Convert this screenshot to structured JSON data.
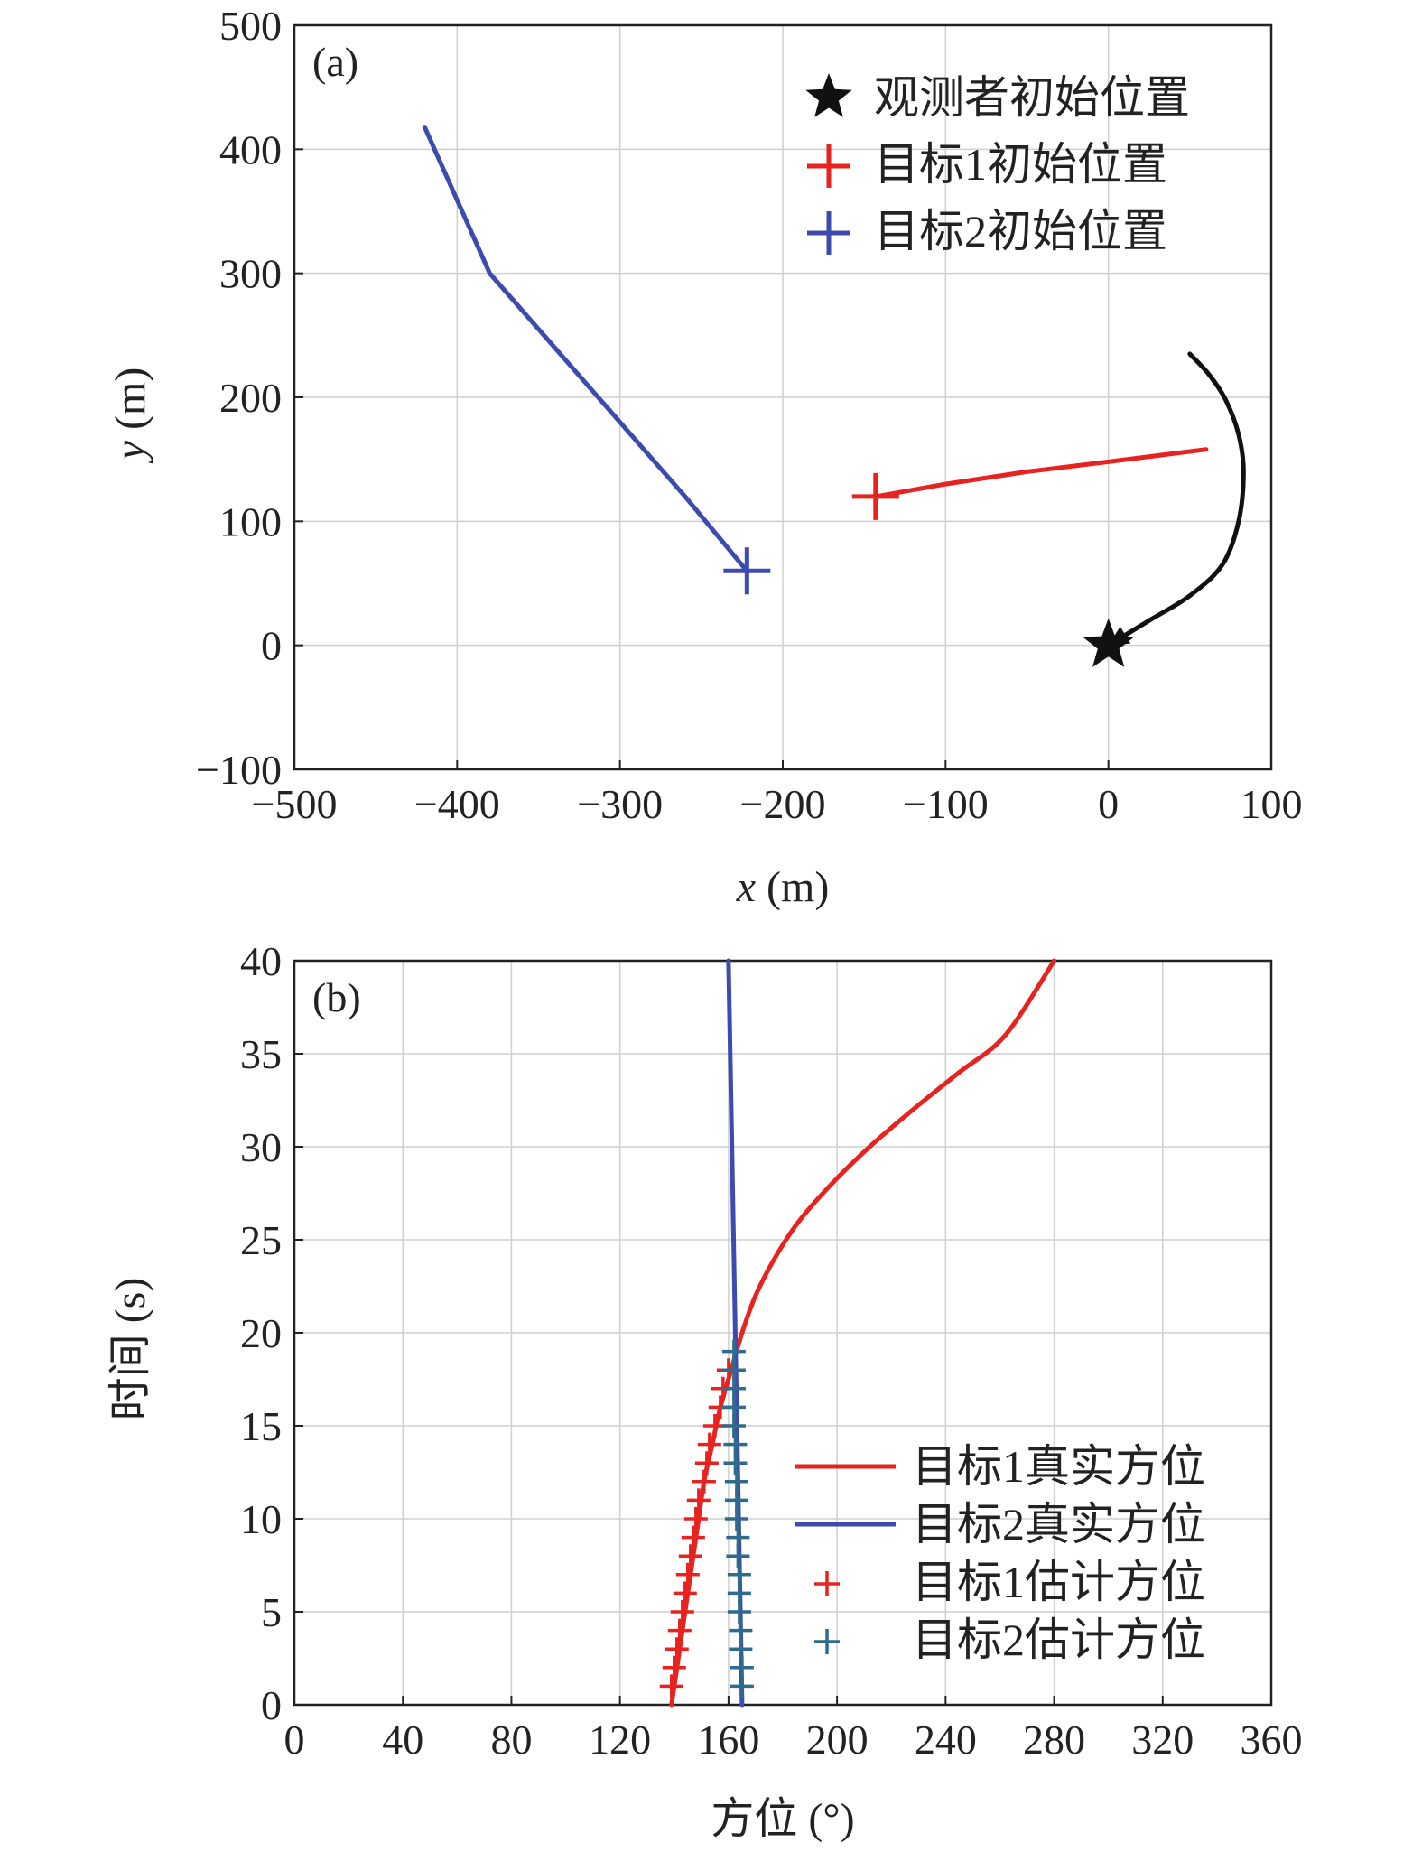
{
  "chart_data": [
    {
      "type": "line",
      "panel_label": "(a)",
      "xlabel": {
        "var": "x",
        "unit": " (m)"
      },
      "ylabel": {
        "var": "y",
        "unit": " (m)"
      },
      "xlim": [
        -500,
        100
      ],
      "ylim": [
        -100,
        500
      ],
      "xticks": [
        -500,
        -400,
        -300,
        -200,
        -100,
        0,
        100
      ],
      "yticks": [
        -100,
        0,
        100,
        200,
        300,
        400,
        500
      ],
      "xtick_labels": [
        "−500",
        "−400",
        "−300",
        "−200",
        "−100",
        "0",
        "100"
      ],
      "ytick_labels": [
        "−100",
        "0",
        "100",
        "200",
        "300",
        "400",
        "500"
      ],
      "grid": true,
      "legend_position": "top-right",
      "series": [
        {
          "name": "观测者初始位置",
          "color": "#111111",
          "marker": "star",
          "points": [
            [
              0,
              0
            ]
          ],
          "path": [
            [
              0,
              0
            ],
            [
              25,
              20
            ],
            [
              50,
              40
            ],
            [
              70,
              65
            ],
            [
              80,
              100
            ],
            [
              83,
              140
            ],
            [
              80,
              170
            ],
            [
              72,
              198
            ],
            [
              62,
              218
            ],
            [
              50,
              235
            ]
          ]
        },
        {
          "name": "目标1初始位置",
          "color": "#e8231f",
          "marker": "plus",
          "points": [
            [
              -143,
              120
            ]
          ],
          "path": [
            [
              -143,
              120
            ],
            [
              -100,
              130
            ],
            [
              -50,
              140
            ],
            [
              0,
              148
            ],
            [
              60,
              158
            ]
          ]
        },
        {
          "name": "目标2初始位置",
          "color": "#3d4bb0",
          "marker": "plus",
          "points": [
            [
              -222,
              60
            ]
          ],
          "path": [
            [
              -222,
              60
            ],
            [
              -260,
              120
            ],
            [
              -300,
              180
            ],
            [
              -340,
              240
            ],
            [
              -380,
              300
            ],
            [
              -420,
              418
            ]
          ]
        }
      ]
    },
    {
      "type": "line",
      "panel_label": "(b)",
      "xlabel": "方位 (°)",
      "ylabel": "时间 (s)",
      "xlim": [
        0,
        360
      ],
      "ylim": [
        0,
        40
      ],
      "xticks": [
        0,
        40,
        80,
        120,
        160,
        200,
        240,
        280,
        320,
        360
      ],
      "yticks": [
        0,
        5,
        10,
        15,
        20,
        25,
        30,
        35,
        40
      ],
      "grid": true,
      "legend_position": "bottom-right",
      "series": [
        {
          "name": "目标1真实方位",
          "color": "#e8231f",
          "style": "line",
          "x": [
            139,
            141,
            143,
            145,
            147,
            149,
            151,
            154,
            157,
            161,
            165,
            170,
            177,
            186,
            198,
            212,
            228,
            245,
            262,
            280
          ],
          "y": [
            0,
            2,
            4,
            6,
            8,
            10,
            12,
            14,
            16,
            18,
            20,
            22,
            24,
            26,
            28,
            30,
            32,
            34,
            36,
            40
          ]
        },
        {
          "name": "目标2真实方位",
          "color": "#3d4bb0",
          "style": "line",
          "x": [
            165,
            164.5,
            164,
            163.5,
            163,
            162.5,
            162,
            161.5,
            161,
            160.5,
            160
          ],
          "y": [
            0,
            4,
            8,
            12,
            16,
            20,
            24,
            28,
            32,
            36,
            40
          ]
        },
        {
          "name": "目标1估计方位",
          "color": "#e8231f",
          "style": "marker",
          "x": [
            139,
            140,
            141,
            142,
            143,
            144,
            145,
            146,
            147,
            148,
            149,
            151,
            152,
            153,
            155,
            157,
            158,
            160
          ],
          "y": [
            1,
            2,
            3,
            4,
            5,
            6,
            7,
            8,
            9,
            10,
            11,
            12,
            13,
            14,
            15,
            16,
            17,
            18
          ]
        },
        {
          "name": "目标2估计方位",
          "color": "#2e6b8c",
          "style": "marker",
          "x": [
            165,
            165,
            164.5,
            164.5,
            164,
            164,
            164,
            163.5,
            163.5,
            163,
            163,
            163,
            162.5,
            162.5,
            162,
            162,
            162,
            162,
            162
          ],
          "y": [
            1,
            2,
            3,
            4,
            5,
            6,
            7,
            8,
            9,
            10,
            11,
            12,
            13,
            14,
            15,
            16,
            17,
            18,
            19
          ]
        }
      ]
    }
  ]
}
